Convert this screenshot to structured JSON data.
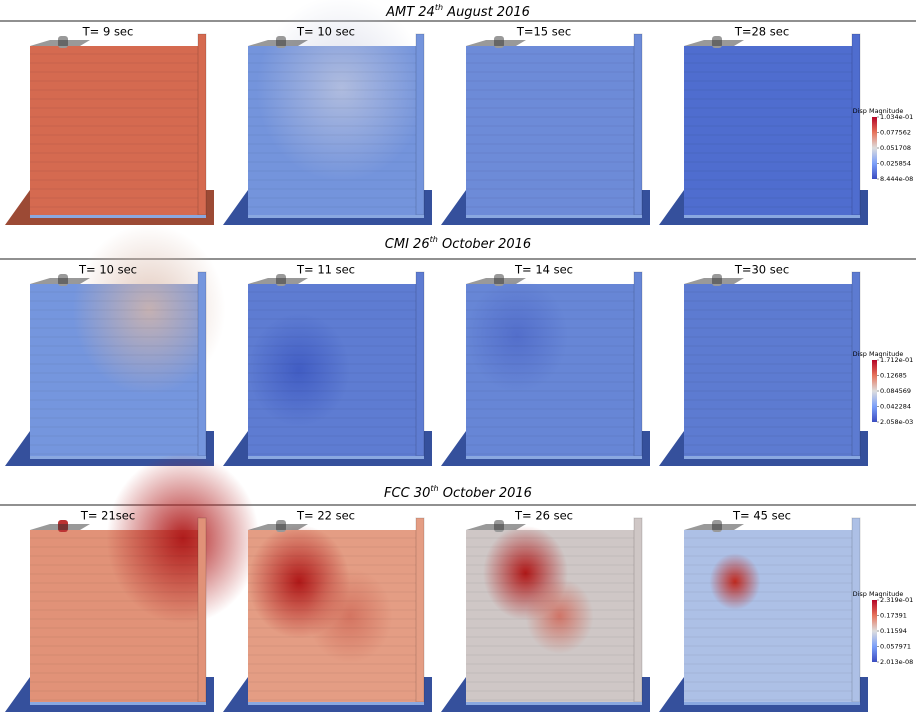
{
  "rows": [
    {
      "title": {
        "prefix": "AMT 24",
        "sup": "th",
        "suffix": " August 2016"
      },
      "panels": [
        "T= 9 sec",
        "T= 10 sec",
        "T=15 sec",
        "T=28 sec"
      ],
      "colorbar": {
        "label": "Disp Magnitude",
        "ticks": [
          "1.034e-01",
          "0.077562",
          "0.051708",
          "0.025854",
          "8.444e-08"
        ]
      }
    },
    {
      "title": {
        "prefix": "CMI 26",
        "sup": "th",
        "suffix": " October 2016"
      },
      "panels": [
        "T= 10 sec",
        "T= 11 sec",
        "T= 14 sec",
        "T=30 sec"
      ],
      "colorbar": {
        "label": "Disp Magnitude",
        "ticks": [
          "1.712e-01",
          "0.12685",
          "0.084569",
          "0.042284",
          "2.058e-03"
        ]
      }
    },
    {
      "title": {
        "prefix": "FCC 30",
        "sup": "th",
        "suffix": " October 2016"
      },
      "panels": [
        "T= 21sec",
        "T= 22 sec",
        "T= 26 sec",
        "T= 45 sec"
      ],
      "colorbar": {
        "label": "Disp Magnitude",
        "ticks": [
          "2.319e-01",
          "0.17391",
          "0.11594",
          "0.057971",
          "2.013e-08"
        ]
      }
    }
  ]
}
